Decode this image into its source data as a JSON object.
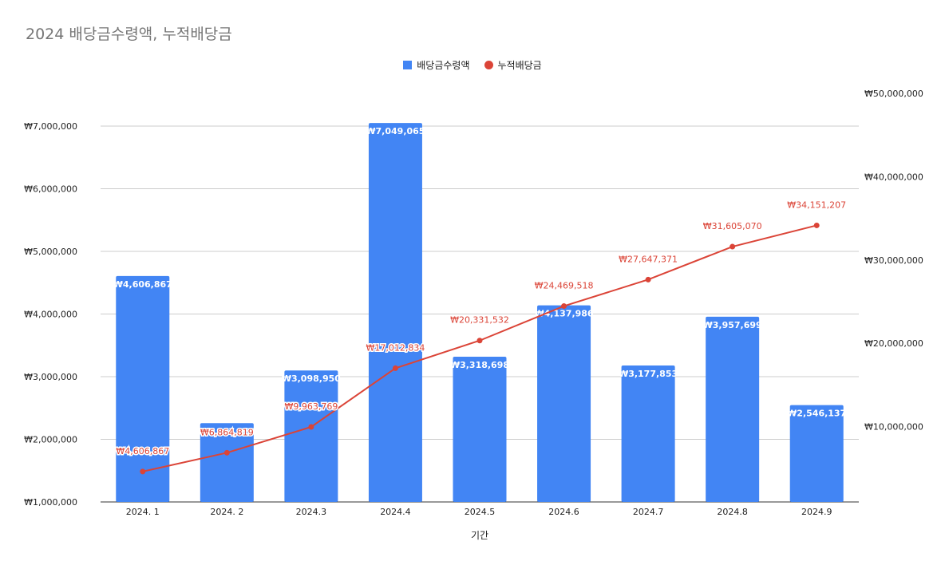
{
  "chart_data": {
    "type": "bar",
    "title": "2024 배당금수령액, 누적배당금",
    "xlabel": "기간",
    "ylabel": "",
    "ylabel_right": "",
    "categories": [
      "2024. 1",
      "2024. 2",
      "2024.3",
      "2024.4",
      "2024.5",
      "2024.6",
      "2024.7",
      "2024.8",
      "2024.9"
    ],
    "series": [
      {
        "name": "배당금수령액",
        "type": "bar",
        "axis": "left",
        "values": [
          4606867,
          2257952,
          3098950,
          7049065,
          3318698,
          4137986,
          3177853,
          3957699,
          2546137
        ],
        "labels": [
          "₩4,606,867",
          "₩2,257,952",
          "₩3,098,950",
          "₩7,049,065",
          "₩3,318,698",
          "₩4,137,986",
          "₩3,177,853",
          "₩3,957,699",
          "₩2,546,137"
        ],
        "color": "#4285f4"
      },
      {
        "name": "누적배당금",
        "type": "line",
        "axis": "right",
        "values": [
          4606867,
          6864819,
          9963769,
          17012834,
          20331532,
          24469518,
          27647371,
          31605070,
          34151207
        ],
        "labels": [
          "₩4,606,867",
          "₩6,864,819",
          "₩9,963,769",
          "₩17,012,834",
          "₩20,331,532",
          "₩24,469,518",
          "₩27,647,371",
          "₩31,605,070",
          "₩34,151,207"
        ],
        "color": "#db4437"
      }
    ],
    "ylim": [
      1000000,
      7000000
    ],
    "ylim_right": [
      0,
      50000000
    ],
    "yticks_left": [
      "₩1,000,000",
      "₩2,000,000",
      "₩3,000,000",
      "₩4,000,000",
      "₩5,000,000",
      "₩6,000,000",
      "₩7,000,000"
    ],
    "yticks_right": [
      "₩10,000,000",
      "₩20,000,000",
      "₩30,000,000",
      "₩40,000,000",
      "₩50,000,000"
    ],
    "ytick_values_left": [
      1000000,
      2000000,
      3000000,
      4000000,
      5000000,
      6000000,
      7000000
    ],
    "ytick_values_right": [
      10000000,
      20000000,
      30000000,
      40000000,
      50000000
    ],
    "grid": true,
    "legend_position": "top-center"
  },
  "colors": {
    "bar": "#4285f4",
    "line": "#db4437",
    "grid": "#cccccc",
    "title": "#757575"
  }
}
